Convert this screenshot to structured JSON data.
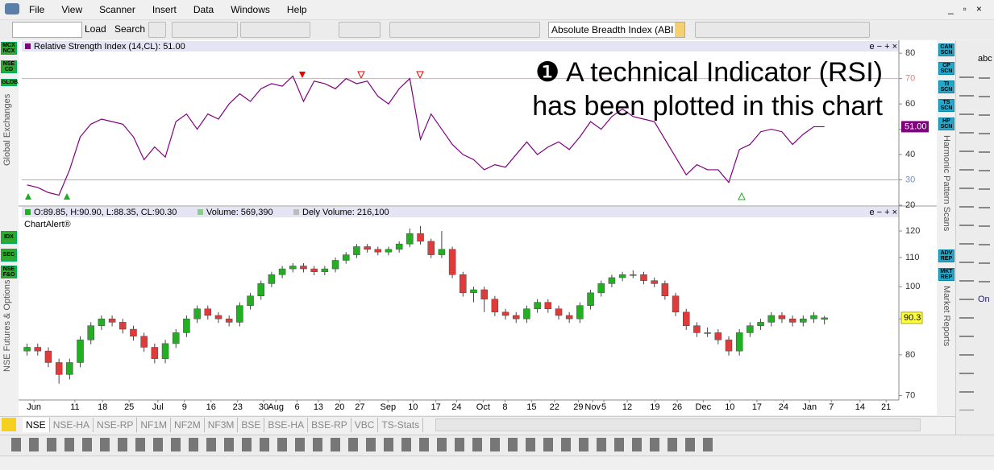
{
  "menu": [
    "File",
    "View",
    "Scanner",
    "Insert",
    "Data",
    "Windows",
    "Help"
  ],
  "toolbar": {
    "load": "Load",
    "search": "Search",
    "indicator": "Absolute Breadth Index (ABI"
  },
  "left_panel": {
    "exchanges": [
      "MCX NCX",
      "NSE CD",
      "GLOBAL"
    ],
    "exchanges_label": "Global Exchanges",
    "futures": [
      "IDX",
      "SEC",
      "NSE F&O"
    ],
    "futures_label": "NSE Futures & Options"
  },
  "right_panel": {
    "scans": [
      "CAN SCN",
      "CP SCN",
      "TI SCN",
      "TS SCN",
      "HP SCN"
    ],
    "scans_label": "Harmonic Pattern Scans",
    "reports": [
      "ADV REP",
      "MKT REP"
    ],
    "reports_label": "Market Reports"
  },
  "tools": [
    "abc",
    "On"
  ],
  "tabs": [
    "NSE",
    "NSE-HA",
    "NSE-RP",
    "NF1M",
    "NF2M",
    "NF3M",
    "BSE",
    "BSE-HA",
    "BSE-RP",
    "VBC",
    "TS-Stats"
  ],
  "panel_controls": "e − + ×",
  "annotation": [
    "❶ A technical Indicator (RSI)",
    "has been plotted in this chart"
  ],
  "chart_data": [
    {
      "type": "line",
      "title": "Relative Strength Index (14,CL): 51.00",
      "color": "#800080",
      "current_label": "51.00",
      "overbought": 70,
      "oversold": 30,
      "xlim": [
        0,
        165
      ],
      "ylim": [
        20,
        84.5
      ],
      "yticks": [
        80,
        70,
        60,
        50,
        40,
        30,
        20
      ],
      "x": [
        1,
        3,
        5,
        7,
        9,
        11,
        13,
        15,
        17,
        19,
        21,
        23,
        25,
        27,
        29,
        31,
        33,
        35,
        37,
        39,
        41,
        43,
        45,
        47,
        49,
        51,
        53,
        55,
        57,
        59,
        61,
        63,
        65,
        67,
        69,
        71,
        73,
        75,
        77,
        79,
        81,
        83,
        85,
        87,
        89,
        91,
        93,
        95,
        97,
        99,
        101,
        103,
        105,
        107,
        109,
        111,
        113,
        115,
        117,
        119,
        121,
        123,
        125,
        127,
        129,
        131,
        133,
        135,
        137,
        139,
        141,
        143,
        145,
        147,
        149,
        151
      ],
      "values": [
        28,
        27,
        25,
        24,
        34,
        47,
        52,
        54,
        53,
        52,
        47,
        38,
        43,
        39,
        53,
        56,
        50,
        56,
        54,
        60,
        64,
        61,
        66,
        68,
        67,
        71,
        61,
        69,
        68,
        66,
        70,
        68,
        69,
        63,
        60,
        66,
        70,
        46,
        56,
        50,
        44,
        40,
        38,
        34,
        36,
        35,
        40,
        45,
        40,
        43,
        45,
        42,
        47,
        53,
        50,
        55,
        58,
        55,
        54,
        53,
        46,
        39,
        32,
        36,
        34,
        34,
        29,
        42,
        44,
        49,
        50,
        49,
        44,
        48,
        51,
        51
      ]
    },
    {
      "type": "candlestick",
      "header": [
        "O:89.85, H:90.90, L:88.35, CL:90.30",
        "Volume: 569,390",
        "Dely Volume: 216,100"
      ],
      "subtitle": "ChartAlert®",
      "current_label": "90.3",
      "log_scale": true,
      "up_color": "#22b022",
      "down_color": "#e03a3a",
      "xlim": [
        0,
        165
      ],
      "ylim": [
        69,
        125.5
      ],
      "yticks": [
        120,
        110,
        100,
        90,
        80,
        70
      ],
      "xticks": [
        {
          "value": 2.3,
          "label": "Jun"
        },
        {
          "value": 10,
          "label": "11"
        },
        {
          "value": 15.2,
          "label": "18"
        },
        {
          "value": 20.2,
          "label": "25"
        },
        {
          "value": 25.6,
          "label": "Jul"
        },
        {
          "value": 30.6,
          "label": "9"
        },
        {
          "value": 35.6,
          "label": "16"
        },
        {
          "value": 40.6,
          "label": "23"
        },
        {
          "value": 45.5,
          "label": "30"
        },
        {
          "value": 47.8,
          "label": "Aug"
        },
        {
          "value": 51.8,
          "label": "6"
        },
        {
          "value": 55.8,
          "label": "13"
        },
        {
          "value": 59.8,
          "label": "20"
        },
        {
          "value": 63.6,
          "label": "27"
        },
        {
          "value": 68.9,
          "label": "Sep"
        },
        {
          "value": 73.6,
          "label": "10"
        },
        {
          "value": 77.9,
          "label": "17"
        },
        {
          "value": 81.8,
          "label": "24"
        },
        {
          "value": 86.8,
          "label": "Oct"
        },
        {
          "value": 90.9,
          "label": "8"
        },
        {
          "value": 95.9,
          "label": "15"
        },
        {
          "value": 100.2,
          "label": "22"
        },
        {
          "value": 104.7,
          "label": "29"
        },
        {
          "value": 107.4,
          "label": "Nov"
        },
        {
          "value": 109.5,
          "label": "5"
        },
        {
          "value": 113.9,
          "label": "12"
        },
        {
          "value": 119.1,
          "label": "19"
        },
        {
          "value": 123.3,
          "label": "26"
        },
        {
          "value": 128.2,
          "label": "Dec"
        },
        {
          "value": 133.2,
          "label": "10"
        },
        {
          "value": 138.3,
          "label": "17"
        },
        {
          "value": 143.3,
          "label": "24"
        },
        {
          "value": 148.2,
          "label": "Jan"
        },
        {
          "value": 152.3,
          "label": "7"
        },
        {
          "value": 157.7,
          "label": "14"
        },
        {
          "value": 162.6,
          "label": "21"
        }
      ],
      "x": [
        1,
        3,
        5,
        7,
        9,
        11,
        13,
        15,
        17,
        19,
        21,
        23,
        25,
        27,
        29,
        31,
        33,
        35,
        37,
        39,
        41,
        43,
        45,
        47,
        49,
        51,
        53,
        55,
        57,
        59,
        61,
        63,
        65,
        67,
        69,
        71,
        73,
        75,
        77,
        79,
        81,
        83,
        85,
        87,
        89,
        91,
        93,
        95,
        97,
        99,
        101,
        103,
        105,
        107,
        109,
        111,
        113,
        115,
        117,
        119,
        121,
        123,
        125,
        127,
        129,
        131,
        133,
        135,
        137,
        139,
        141,
        143,
        145,
        147,
        149,
        151
      ],
      "open": [
        81,
        82,
        81,
        78,
        75,
        78,
        84,
        88,
        90,
        89,
        87,
        85,
        82,
        79,
        83,
        86,
        90,
        93,
        91,
        90,
        89,
        94,
        97,
        101,
        104,
        106,
        107,
        106,
        105,
        106,
        109,
        111,
        114,
        113,
        112,
        113,
        115,
        119,
        116,
        111,
        113,
        104,
        98,
        99,
        96,
        92,
        91,
        90,
        93,
        95,
        93,
        91,
        90,
        94,
        98,
        101,
        103,
        104,
        104,
        102,
        101,
        97,
        92,
        88,
        86,
        86,
        84,
        81,
        86,
        88,
        89,
        91,
        90,
        89,
        90,
        89.85
      ],
      "high": [
        83,
        83,
        82,
        79,
        79,
        85,
        89,
        91,
        91,
        90,
        88,
        86,
        83,
        84,
        87,
        91,
        94,
        94,
        92,
        91,
        95,
        98,
        102,
        105,
        107,
        108,
        108,
        107,
        107,
        110,
        112,
        115,
        115,
        114,
        114,
        116,
        121,
        122,
        117,
        120,
        114,
        105,
        100,
        100,
        97,
        93,
        92,
        94,
        96,
        96,
        94,
        92,
        95,
        99,
        102,
        104,
        105,
        105.5,
        105,
        103,
        102,
        98,
        93,
        89,
        87.5,
        87,
        85,
        87,
        89,
        90,
        92,
        92,
        91,
        91,
        92,
        90.9
      ],
      "low": [
        79.8,
        79.8,
        76.8,
        72.8,
        73.8,
        76.8,
        82.8,
        86.8,
        87.8,
        85.8,
        83.8,
        80.8,
        77.8,
        77.8,
        81.8,
        84.8,
        88.8,
        89.8,
        88.8,
        87.8,
        87.8,
        92.8,
        95.8,
        99.8,
        102.8,
        104.8,
        104.8,
        103.8,
        103.8,
        104.8,
        107.8,
        109.8,
        111.8,
        110.8,
        110.8,
        111.8,
        113.8,
        114.8,
        109.8,
        109.8,
        102.8,
        96.8,
        95,
        92,
        90.8,
        89.8,
        88.8,
        88.8,
        91.8,
        91.8,
        89.8,
        88.8,
        88.8,
        92.8,
        96.8,
        99.8,
        101.8,
        102.8,
        100.8,
        99.8,
        95.8,
        90.8,
        86.8,
        84.8,
        84.8,
        82.8,
        79.8,
        79.8,
        84.8,
        86.8,
        87.8,
        88.8,
        87.8,
        87.8,
        88.8,
        88.35
      ],
      "close": [
        82,
        81,
        78,
        75,
        78,
        84,
        88,
        90,
        89,
        87,
        85,
        82,
        79,
        83,
        86,
        90,
        93,
        91,
        90,
        89,
        94,
        97,
        101,
        104,
        106,
        107,
        106,
        105,
        106,
        109,
        111,
        114,
        113,
        112,
        113,
        115,
        119,
        116,
        111,
        113,
        104,
        98,
        99,
        96,
        92,
        91,
        90,
        93,
        95,
        93,
        91,
        90,
        94,
        98,
        101,
        103,
        104,
        104,
        102,
        101,
        97,
        92,
        88,
        86,
        86,
        84,
        81,
        86,
        88,
        89,
        91,
        90,
        89,
        90,
        91,
        90.3
      ]
    }
  ]
}
